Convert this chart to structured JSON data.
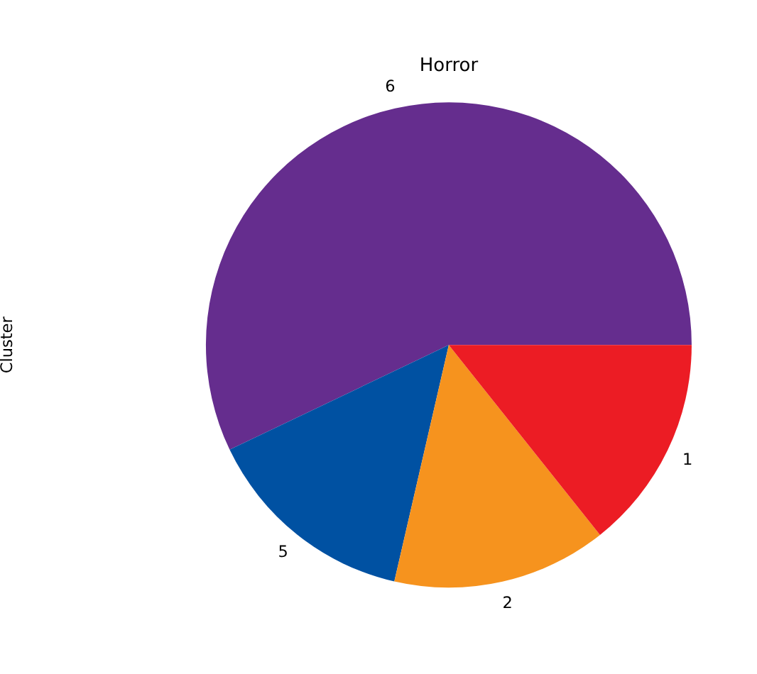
{
  "chart_data": {
    "type": "pie",
    "title": "Horror",
    "ylabel": "Cluster",
    "categories": [
      "6",
      "5",
      "2",
      "1"
    ],
    "values": [
      57.1,
      14.3,
      14.3,
      14.3
    ],
    "colors": [
      "#652d8e",
      "#0051a2",
      "#f6931e",
      "#ec1c24"
    ],
    "legend": false
  }
}
